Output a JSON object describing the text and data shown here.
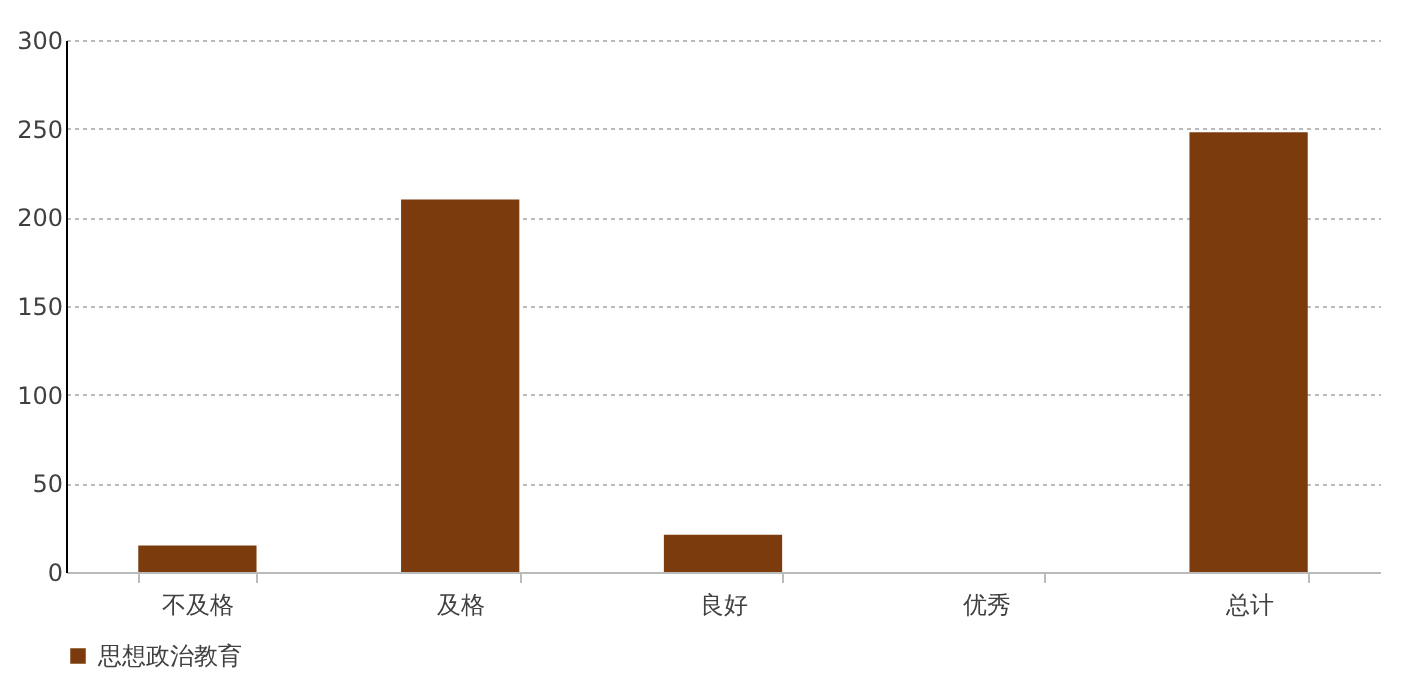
{
  "chart_data": {
    "type": "bar",
    "categories": [
      "不及格",
      "及格",
      "良好",
      "优秀",
      "总计"
    ],
    "series": [
      {
        "name": "思想政治教育",
        "color": "#7b3b0c",
        "values": [
          15,
          210,
          21,
          0,
          248
        ]
      }
    ],
    "ylim": [
      0,
      300
    ],
    "yticks": [
      0,
      50,
      100,
      150,
      200,
      250,
      300
    ],
    "grid": "y",
    "legend": "bottom"
  }
}
